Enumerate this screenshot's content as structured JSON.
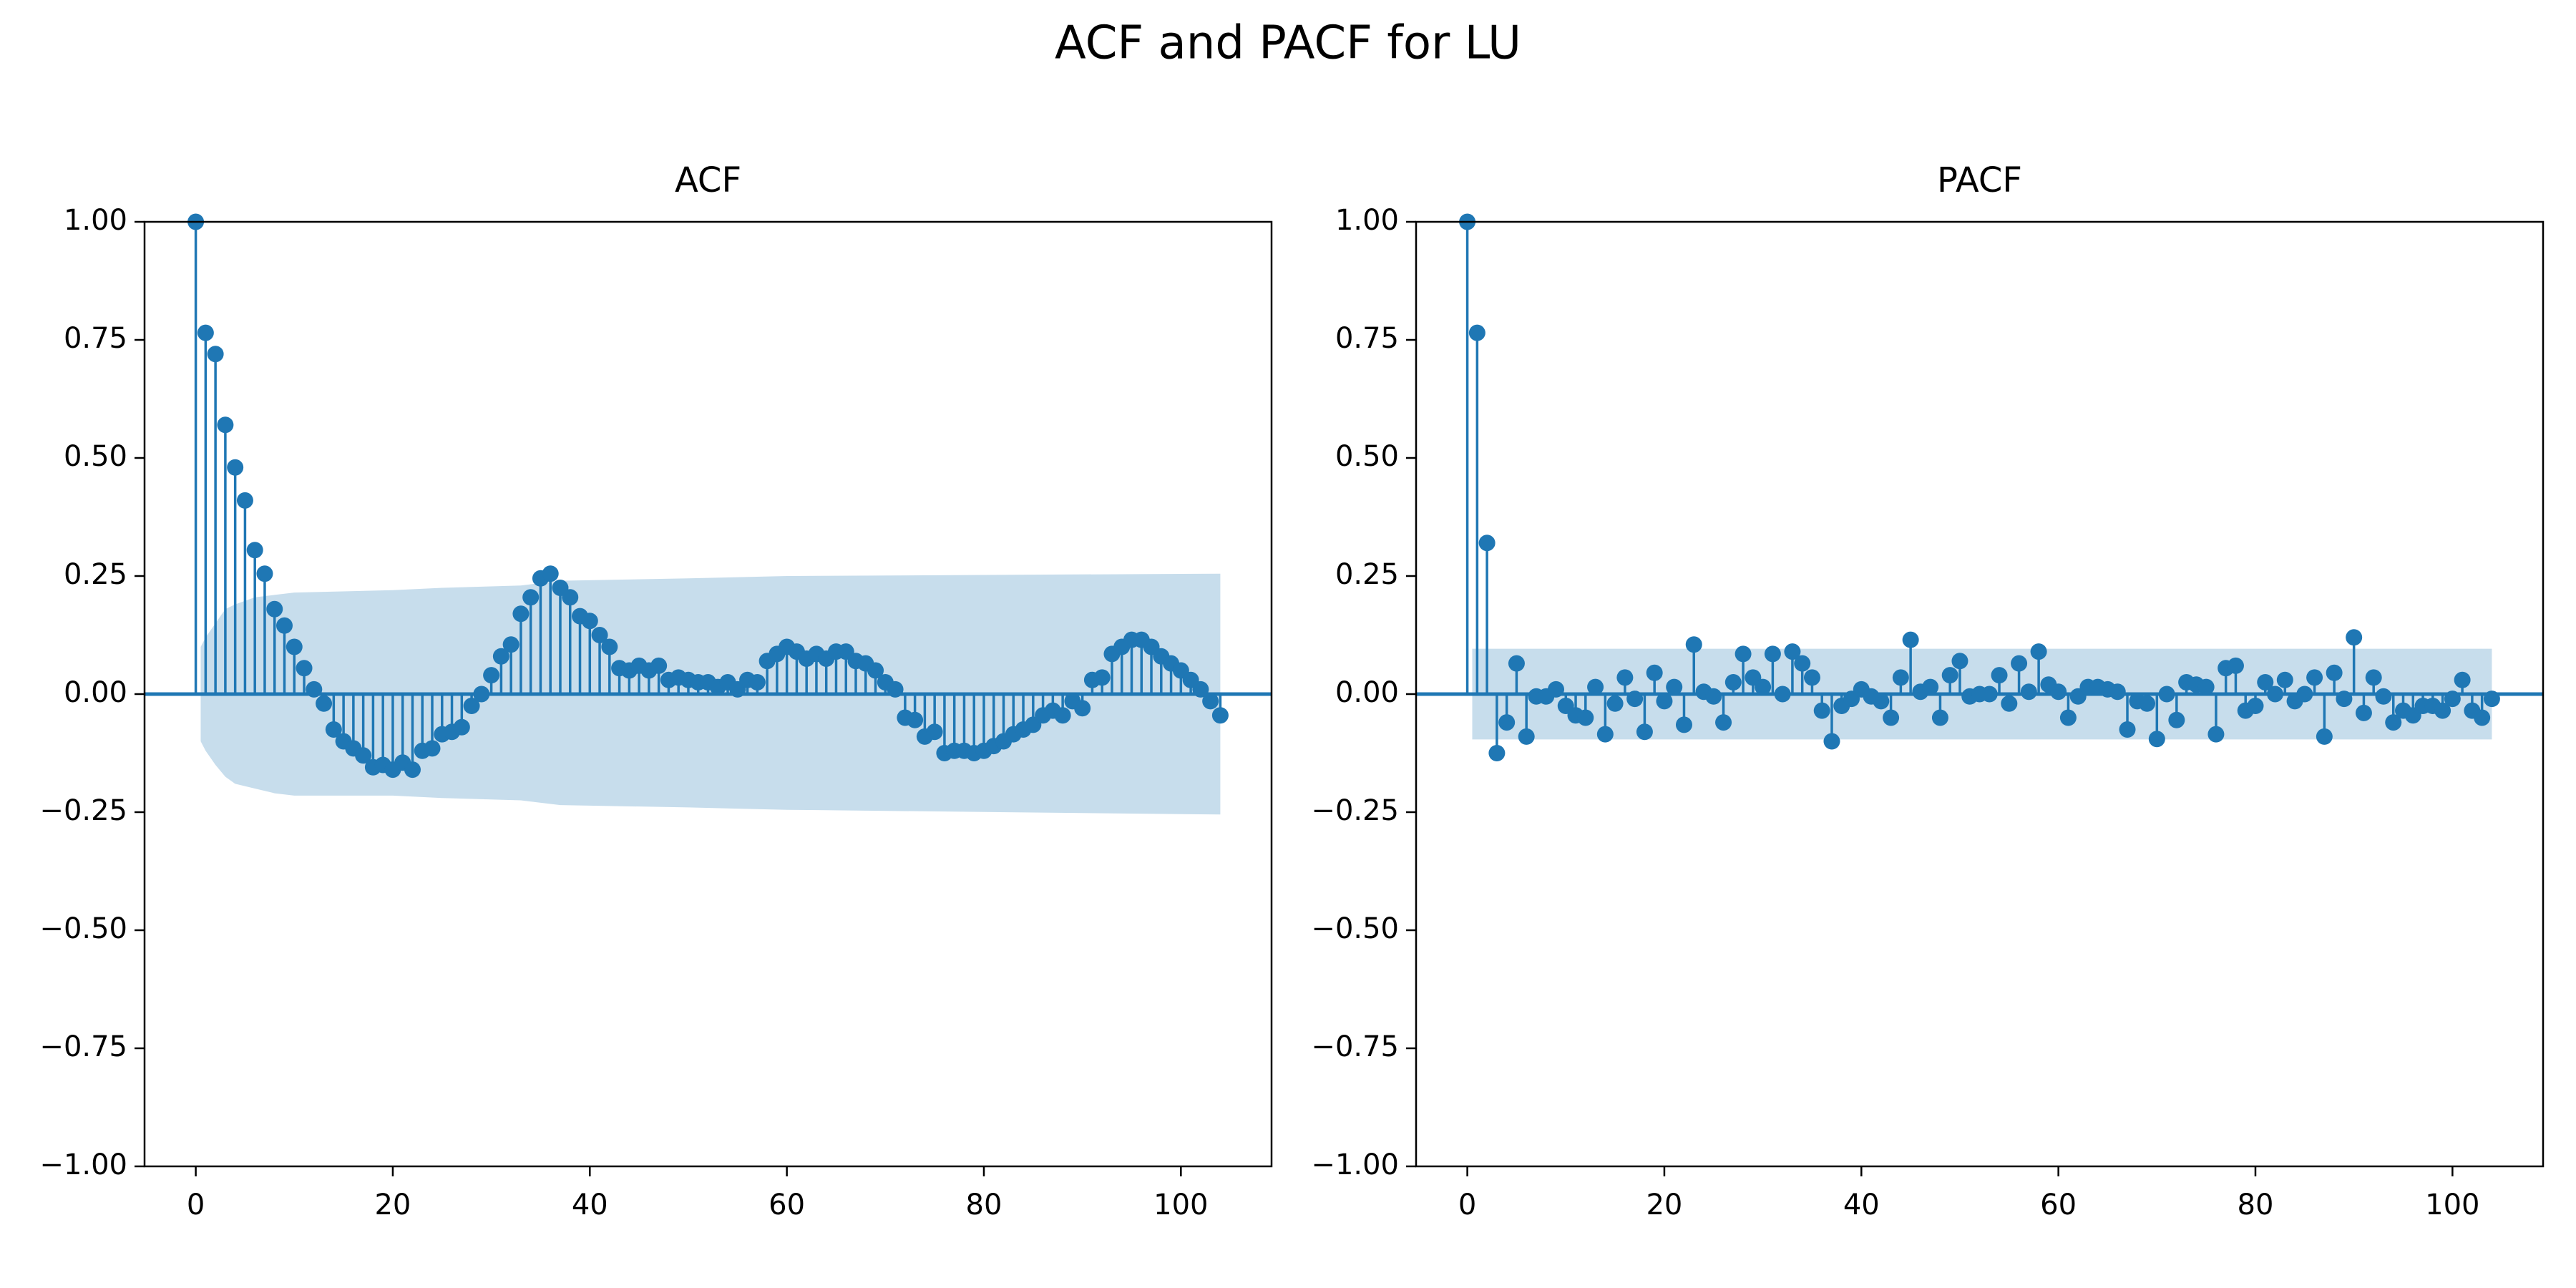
{
  "title": "ACF and PACF for LU",
  "chart_data": [
    {
      "type": "stem",
      "title": "ACF",
      "color": "#1f77b4",
      "x": [
        0,
        1,
        2,
        3,
        4,
        5,
        6,
        7,
        8,
        9,
        10,
        11,
        12,
        13,
        14,
        15,
        16,
        17,
        18,
        19,
        20,
        21,
        22,
        23,
        24,
        25,
        26,
        27,
        28,
        29,
        30,
        31,
        32,
        33,
        34,
        35,
        36,
        37,
        38,
        39,
        40,
        41,
        42,
        43,
        44,
        45,
        46,
        47,
        48,
        49,
        50,
        51,
        52,
        53,
        54,
        55,
        56,
        57,
        58,
        59,
        60,
        61,
        62,
        63,
        64,
        65,
        66,
        67,
        68,
        69,
        70,
        71,
        72,
        73,
        74,
        75,
        76,
        77,
        78,
        79,
        80,
        81,
        82,
        83,
        84,
        85,
        86,
        87,
        88,
        89,
        90,
        91,
        92,
        93,
        94,
        95,
        96,
        97,
        98,
        99,
        100,
        101,
        102,
        103,
        104
      ],
      "values": [
        1.0,
        0.765,
        0.72,
        0.57,
        0.48,
        0.41,
        0.305,
        0.255,
        0.18,
        0.145,
        0.1,
        0.055,
        0.01,
        -0.02,
        -0.075,
        -0.1,
        -0.115,
        -0.13,
        -0.155,
        -0.15,
        -0.16,
        -0.145,
        -0.16,
        -0.12,
        -0.115,
        -0.085,
        -0.08,
        -0.07,
        -0.025,
        0.0,
        0.04,
        0.08,
        0.105,
        0.17,
        0.205,
        0.245,
        0.255,
        0.225,
        0.205,
        0.165,
        0.155,
        0.125,
        0.1,
        0.055,
        0.05,
        0.06,
        0.05,
        0.06,
        0.03,
        0.035,
        0.03,
        0.025,
        0.025,
        0.015,
        0.025,
        0.01,
        0.03,
        0.025,
        0.07,
        0.085,
        0.1,
        0.09,
        0.075,
        0.085,
        0.075,
        0.09,
        0.09,
        0.07,
        0.065,
        0.05,
        0.025,
        0.01,
        -0.05,
        -0.055,
        -0.09,
        -0.08,
        -0.125,
        -0.12,
        -0.12,
        -0.125,
        -0.12,
        -0.11,
        -0.1,
        -0.085,
        -0.075,
        -0.065,
        -0.045,
        -0.035,
        -0.045,
        -0.015,
        -0.03,
        0.03,
        0.035,
        0.085,
        0.1,
        0.115,
        0.115,
        0.1,
        0.08,
        0.065,
        0.05,
        0.03,
        0.01,
        -0.015,
        -0.045
      ],
      "confidence_band": {
        "x": [
          0.5,
          1,
          2,
          3,
          4,
          6,
          8,
          10,
          20,
          25,
          33,
          37,
          50,
          60,
          104
        ],
        "upper": [
          0.1,
          0.12,
          0.15,
          0.18,
          0.19,
          0.205,
          0.21,
          0.215,
          0.22,
          0.225,
          0.23,
          0.24,
          0.245,
          0.25,
          0.255
        ],
        "lower": [
          -0.1,
          -0.12,
          -0.15,
          -0.175,
          -0.19,
          -0.2,
          -0.21,
          -0.215,
          -0.215,
          -0.22,
          -0.225,
          -0.235,
          -0.24,
          -0.245,
          -0.255
        ]
      },
      "xlim": [
        -5.2,
        109.2
      ],
      "ylim": [
        -1,
        1
      ],
      "xticks": [
        0,
        20,
        40,
        60,
        80,
        100
      ],
      "yticks": [
        {
          "value": -1,
          "label": "−1.00"
        },
        {
          "value": -0.75,
          "label": "−0.75"
        },
        {
          "value": -0.5,
          "label": "−0.50"
        },
        {
          "value": -0.25,
          "label": "−0.25"
        },
        {
          "value": 0,
          "label": "0.00"
        },
        {
          "value": 0.25,
          "label": "0.25"
        },
        {
          "value": 0.5,
          "label": "0.50"
        },
        {
          "value": 0.75,
          "label": "0.75"
        },
        {
          "value": 1,
          "label": "1.00"
        }
      ]
    },
    {
      "type": "stem",
      "title": "PACF",
      "color": "#1f77b4",
      "x": [
        0,
        1,
        2,
        3,
        4,
        5,
        6,
        7,
        8,
        9,
        10,
        11,
        12,
        13,
        14,
        15,
        16,
        17,
        18,
        19,
        20,
        21,
        22,
        23,
        24,
        25,
        26,
        27,
        28,
        29,
        30,
        31,
        32,
        33,
        34,
        35,
        36,
        37,
        38,
        39,
        40,
        41,
        42,
        43,
        44,
        45,
        46,
        47,
        48,
        49,
        50,
        51,
        52,
        53,
        54,
        55,
        56,
        57,
        58,
        59,
        60,
        61,
        62,
        63,
        64,
        65,
        66,
        67,
        68,
        69,
        70,
        71,
        72,
        73,
        74,
        75,
        76,
        77,
        78,
        79,
        80,
        81,
        82,
        83,
        84,
        85,
        86,
        87,
        88,
        89,
        90,
        91,
        92,
        93,
        94,
        95,
        96,
        97,
        98,
        99,
        100,
        101,
        102,
        103,
        104
      ],
      "values": [
        1.0,
        0.765,
        0.32,
        -0.125,
        -0.06,
        0.065,
        -0.09,
        -0.005,
        -0.005,
        0.01,
        -0.025,
        -0.045,
        -0.05,
        0.015,
        -0.085,
        -0.02,
        0.035,
        -0.01,
        -0.08,
        0.045,
        -0.015,
        0.015,
        -0.065,
        0.105,
        0.005,
        -0.005,
        -0.06,
        0.025,
        0.085,
        0.035,
        0.015,
        0.085,
        0.0,
        0.09,
        0.065,
        0.035,
        -0.035,
        -0.1,
        -0.025,
        -0.01,
        0.01,
        -0.005,
        -0.015,
        -0.05,
        0.035,
        0.115,
        0.005,
        0.015,
        -0.05,
        0.04,
        0.07,
        -0.005,
        0.0,
        0.0,
        0.04,
        -0.02,
        0.065,
        0.005,
        0.09,
        0.02,
        0.005,
        -0.05,
        -0.005,
        0.015,
        0.015,
        0.01,
        0.005,
        -0.075,
        -0.015,
        -0.02,
        -0.095,
        0.0,
        -0.055,
        0.025,
        0.02,
        0.015,
        -0.085,
        0.055,
        0.06,
        -0.035,
        -0.025,
        0.025,
        0.0,
        0.03,
        -0.015,
        0.0,
        0.035,
        -0.09,
        0.045,
        -0.01,
        0.12,
        -0.04,
        0.035,
        -0.005,
        -0.06,
        -0.035,
        -0.045,
        -0.025,
        -0.025,
        -0.035,
        -0.01,
        0.03,
        -0.035,
        -0.05,
        -0.01
      ],
      "confidence_band": {
        "x": [
          0.5,
          104
        ],
        "upper": [
          0.096,
          0.096
        ],
        "lower": [
          -0.096,
          -0.096
        ]
      },
      "xlim": [
        -5.2,
        109.2
      ],
      "ylim": [
        -1,
        1
      ],
      "xticks": [
        0,
        20,
        40,
        60,
        80,
        100
      ],
      "yticks": [
        {
          "value": -1,
          "label": "−1.00"
        },
        {
          "value": -0.75,
          "label": "−0.75"
        },
        {
          "value": -0.5,
          "label": "−0.50"
        },
        {
          "value": -0.25,
          "label": "−0.25"
        },
        {
          "value": 0,
          "label": "0.00"
        },
        {
          "value": 0.25,
          "label": "0.25"
        },
        {
          "value": 0.5,
          "label": "0.50"
        },
        {
          "value": 0.75,
          "label": "0.75"
        },
        {
          "value": 1,
          "label": "1.00"
        }
      ]
    }
  ]
}
